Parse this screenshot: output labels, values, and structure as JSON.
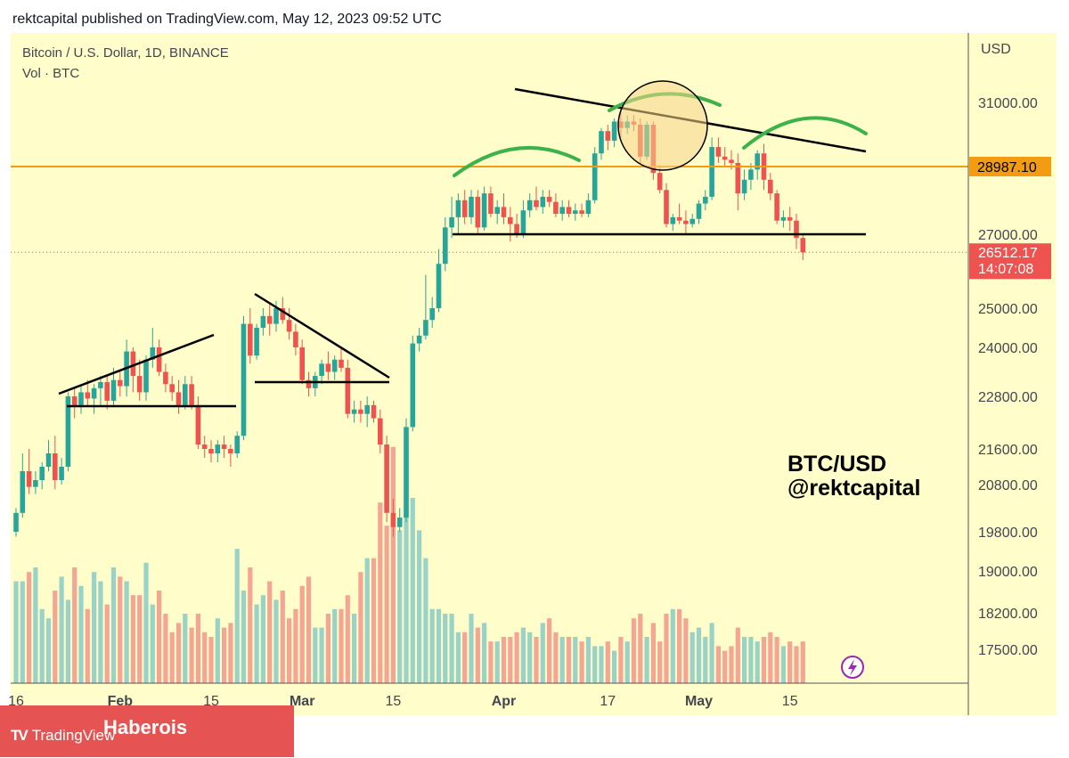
{
  "header": {
    "publisher_line": "rektcapital published on TradingView.com, May 12, 2023 09:52 UTC"
  },
  "legend": {
    "symbol": "Bitcoin / U.S. Dollar, 1D, BINANCE",
    "volume": "Vol · BTC"
  },
  "watermark": {
    "line1": "BTC/USD",
    "line2": "@rektcapital"
  },
  "badge": {
    "logo_text": "TradingView",
    "logo_mark": "TV",
    "brand": "Haberois"
  },
  "colors": {
    "background": "#fffdc9",
    "up": "#26a69a",
    "down": "#ef5350",
    "volume_up": "#99d3c8",
    "volume_down": "#f5a594",
    "resistance": "#f39c12",
    "price_label": "#ef5350",
    "trendline": "#000000",
    "arc": "#3bb34a"
  },
  "chart_data": {
    "type": "candlestick",
    "symbol": "BTC/USD",
    "timeframe": "1D",
    "exchange": "BINANCE",
    "currency_label": "USD",
    "y_ticks": [
      17500.0,
      18200.0,
      19000.0,
      19800.0,
      20800.0,
      21600.0,
      22800.0,
      24000.0,
      25000.0,
      27000.0,
      31000.0
    ],
    "y_tick_labels": [
      "17500.00",
      "18200.00",
      "19000.00",
      "19800.00",
      "20800.00",
      "21600.00",
      "22800.00",
      "24000.00",
      "25000.00",
      "27000.00",
      "31000.00"
    ],
    "x_tick_labels": [
      "16",
      "Feb",
      "15",
      "Mar",
      "15",
      "Apr",
      "17",
      "May",
      "15"
    ],
    "x_tick_dates": [
      "2023-01-16",
      "2023-02-01",
      "2023-02-15",
      "2023-03-01",
      "2023-03-15",
      "2023-04-01",
      "2023-04-17",
      "2023-05-01",
      "2023-05-15"
    ],
    "x_range": [
      "2023-01-16",
      "2023-06-05"
    ],
    "y_range": [
      16620,
      31900
    ],
    "horizontal_level": {
      "value": 28987.1,
      "label": "28987.10"
    },
    "last_price": {
      "value": 26512.17,
      "label": "26512.17",
      "countdown": "14:07:08"
    },
    "support_level": 27000,
    "candles": [
      {
        "date": "2023-01-16",
        "o": 19800,
        "h": 20300,
        "l": 19700,
        "c": 20200
      },
      {
        "date": "2023-01-17",
        "o": 20200,
        "h": 21500,
        "l": 20100,
        "c": 21100
      },
      {
        "date": "2023-01-18",
        "o": 21100,
        "h": 21600,
        "l": 20600,
        "c": 20750
      },
      {
        "date": "2023-01-19",
        "o": 20750,
        "h": 21100,
        "l": 20600,
        "c": 20900
      },
      {
        "date": "2023-01-20",
        "o": 20900,
        "h": 21300,
        "l": 20700,
        "c": 21200
      },
      {
        "date": "2023-01-21",
        "o": 21200,
        "h": 21800,
        "l": 21100,
        "c": 21500
      },
      {
        "date": "2023-01-22",
        "o": 21500,
        "h": 21900,
        "l": 20700,
        "c": 20900
      },
      {
        "date": "2023-01-23",
        "o": 20900,
        "h": 21400,
        "l": 20800,
        "c": 21200
      },
      {
        "date": "2023-01-24",
        "o": 21200,
        "h": 22900,
        "l": 21100,
        "c": 22800
      },
      {
        "date": "2023-01-25",
        "o": 22800,
        "h": 23000,
        "l": 22300,
        "c": 22600
      },
      {
        "date": "2023-01-26",
        "o": 22600,
        "h": 23100,
        "l": 22400,
        "c": 22900
      },
      {
        "date": "2023-01-27",
        "o": 22900,
        "h": 23200,
        "l": 22600,
        "c": 22750
      },
      {
        "date": "2023-01-28",
        "o": 22750,
        "h": 23100,
        "l": 22400,
        "c": 23000
      },
      {
        "date": "2023-01-29",
        "o": 23000,
        "h": 23300,
        "l": 22600,
        "c": 23150
      },
      {
        "date": "2023-01-30",
        "o": 23150,
        "h": 23300,
        "l": 22500,
        "c": 22700
      },
      {
        "date": "2023-01-31",
        "o": 22700,
        "h": 23500,
        "l": 22600,
        "c": 23200
      },
      {
        "date": "2023-02-01",
        "o": 23200,
        "h": 23400,
        "l": 22800,
        "c": 23050
      },
      {
        "date": "2023-02-02",
        "o": 23050,
        "h": 24200,
        "l": 22800,
        "c": 23900
      },
      {
        "date": "2023-02-03",
        "o": 23900,
        "h": 24000,
        "l": 22900,
        "c": 23300
      },
      {
        "date": "2023-02-04",
        "o": 23300,
        "h": 23700,
        "l": 22700,
        "c": 22900
      },
      {
        "date": "2023-02-05",
        "o": 22900,
        "h": 23800,
        "l": 22700,
        "c": 23700
      },
      {
        "date": "2023-02-06",
        "o": 23700,
        "h": 24500,
        "l": 23500,
        "c": 24000
      },
      {
        "date": "2023-02-07",
        "o": 24000,
        "h": 24200,
        "l": 23300,
        "c": 23400
      },
      {
        "date": "2023-02-08",
        "o": 23400,
        "h": 23600,
        "l": 22900,
        "c": 23100
      },
      {
        "date": "2023-02-09",
        "o": 23100,
        "h": 23300,
        "l": 22700,
        "c": 22900
      },
      {
        "date": "2023-02-10",
        "o": 22900,
        "h": 23200,
        "l": 22400,
        "c": 22600
      },
      {
        "date": "2023-02-11",
        "o": 22600,
        "h": 23300,
        "l": 22500,
        "c": 23100
      },
      {
        "date": "2023-02-12",
        "o": 23100,
        "h": 23300,
        "l": 22500,
        "c": 22600
      },
      {
        "date": "2023-02-13",
        "o": 22600,
        "h": 22800,
        "l": 21600,
        "c": 21700
      },
      {
        "date": "2023-02-14",
        "o": 21700,
        "h": 21900,
        "l": 21400,
        "c": 21600
      },
      {
        "date": "2023-02-15",
        "o": 21600,
        "h": 21800,
        "l": 21300,
        "c": 21500
      },
      {
        "date": "2023-02-16",
        "o": 21500,
        "h": 21800,
        "l": 21300,
        "c": 21700
      },
      {
        "date": "2023-02-17",
        "o": 21700,
        "h": 21900,
        "l": 21400,
        "c": 21600
      },
      {
        "date": "2023-02-18",
        "o": 21600,
        "h": 21700,
        "l": 21200,
        "c": 21500
      },
      {
        "date": "2023-02-19",
        "o": 21500,
        "h": 22000,
        "l": 21400,
        "c": 21900
      },
      {
        "date": "2023-02-20",
        "o": 21900,
        "h": 24800,
        "l": 21800,
        "c": 24600
      },
      {
        "date": "2023-02-21",
        "o": 24600,
        "h": 25000,
        "l": 23600,
        "c": 23800
      },
      {
        "date": "2023-02-22",
        "o": 23800,
        "h": 24600,
        "l": 23700,
        "c": 24500
      },
      {
        "date": "2023-02-23",
        "o": 24500,
        "h": 25000,
        "l": 24300,
        "c": 24800
      },
      {
        "date": "2023-02-24",
        "o": 24800,
        "h": 25100,
        "l": 24300,
        "c": 24600
      },
      {
        "date": "2023-02-25",
        "o": 24600,
        "h": 25200,
        "l": 24400,
        "c": 25000
      },
      {
        "date": "2023-02-26",
        "o": 25000,
        "h": 25300,
        "l": 24600,
        "c": 24700
      },
      {
        "date": "2023-02-27",
        "o": 24700,
        "h": 25000,
        "l": 24200,
        "c": 24400
      },
      {
        "date": "2023-02-28",
        "o": 24400,
        "h": 24600,
        "l": 23800,
        "c": 24000
      },
      {
        "date": "2023-03-01",
        "o": 24000,
        "h": 24200,
        "l": 23100,
        "c": 23200
      },
      {
        "date": "2023-03-02",
        "o": 23200,
        "h": 23400,
        "l": 22800,
        "c": 23000
      },
      {
        "date": "2023-03-03",
        "o": 23000,
        "h": 23400,
        "l": 22800,
        "c": 23300
      },
      {
        "date": "2023-03-04",
        "o": 23300,
        "h": 23700,
        "l": 23100,
        "c": 23600
      },
      {
        "date": "2023-03-05",
        "o": 23600,
        "h": 23900,
        "l": 23200,
        "c": 23400
      },
      {
        "date": "2023-03-06",
        "o": 23400,
        "h": 23800,
        "l": 23200,
        "c": 23700
      },
      {
        "date": "2023-03-07",
        "o": 23700,
        "h": 24000,
        "l": 23400,
        "c": 23500
      },
      {
        "date": "2023-03-08",
        "o": 23500,
        "h": 23700,
        "l": 22300,
        "c": 22400
      },
      {
        "date": "2023-03-09",
        "o": 22400,
        "h": 22700,
        "l": 22200,
        "c": 22500
      },
      {
        "date": "2023-03-10",
        "o": 22500,
        "h": 22700,
        "l": 22200,
        "c": 22400
      },
      {
        "date": "2023-03-11",
        "o": 22400,
        "h": 22800,
        "l": 22100,
        "c": 22600
      },
      {
        "date": "2023-03-12",
        "o": 22600,
        "h": 22700,
        "l": 22200,
        "c": 22300
      },
      {
        "date": "2023-03-13",
        "o": 22300,
        "h": 22500,
        "l": 21500,
        "c": 21700
      },
      {
        "date": "2023-03-14",
        "o": 21700,
        "h": 21900,
        "l": 20000,
        "c": 20200
      },
      {
        "date": "2023-03-15",
        "o": 20200,
        "h": 20500,
        "l": 19700,
        "c": 19900
      },
      {
        "date": "2023-03-16",
        "o": 19900,
        "h": 20300,
        "l": 19800,
        "c": 20100
      },
      {
        "date": "2023-03-17",
        "o": 20100,
        "h": 22300,
        "l": 20000,
        "c": 22100
      },
      {
        "date": "2023-03-18",
        "o": 22100,
        "h": 24300,
        "l": 22000,
        "c": 24100
      },
      {
        "date": "2023-03-19",
        "o": 24100,
        "h": 24500,
        "l": 23900,
        "c": 24300
      },
      {
        "date": "2023-03-20",
        "o": 24300,
        "h": 25900,
        "l": 24200,
        "c": 24700
      },
      {
        "date": "2023-03-21",
        "o": 24700,
        "h": 25300,
        "l": 24500,
        "c": 25000
      },
      {
        "date": "2023-03-22",
        "o": 25000,
        "h": 26600,
        "l": 24900,
        "c": 26200
      },
      {
        "date": "2023-03-23",
        "o": 26200,
        "h": 27500,
        "l": 26000,
        "c": 27200
      },
      {
        "date": "2023-03-24",
        "o": 27200,
        "h": 28100,
        "l": 26900,
        "c": 27500
      },
      {
        "date": "2023-03-25",
        "o": 27500,
        "h": 28200,
        "l": 27000,
        "c": 28000
      },
      {
        "date": "2023-03-26",
        "o": 28000,
        "h": 28300,
        "l": 27300,
        "c": 27500
      },
      {
        "date": "2023-03-27",
        "o": 27500,
        "h": 28300,
        "l": 27300,
        "c": 28100
      },
      {
        "date": "2023-03-28",
        "o": 28100,
        "h": 28300,
        "l": 27000,
        "c": 27200
      },
      {
        "date": "2023-03-29",
        "o": 27200,
        "h": 28400,
        "l": 27100,
        "c": 28200
      },
      {
        "date": "2023-03-30",
        "o": 28200,
        "h": 28400,
        "l": 27500,
        "c": 27600
      },
      {
        "date": "2023-03-31",
        "o": 27600,
        "h": 28000,
        "l": 27300,
        "c": 27800
      },
      {
        "date": "2023-04-01",
        "o": 27800,
        "h": 28200,
        "l": 27300,
        "c": 27500
      },
      {
        "date": "2023-04-02",
        "o": 27500,
        "h": 27800,
        "l": 26800,
        "c": 27300
      },
      {
        "date": "2023-04-03",
        "o": 27300,
        "h": 27600,
        "l": 26900,
        "c": 27000
      },
      {
        "date": "2023-04-04",
        "o": 27000,
        "h": 28000,
        "l": 26900,
        "c": 27700
      },
      {
        "date": "2023-04-05",
        "o": 27700,
        "h": 28200,
        "l": 27500,
        "c": 28000
      },
      {
        "date": "2023-04-06",
        "o": 28000,
        "h": 28400,
        "l": 27700,
        "c": 27800
      },
      {
        "date": "2023-04-07",
        "o": 27800,
        "h": 28300,
        "l": 27600,
        "c": 28100
      },
      {
        "date": "2023-04-08",
        "o": 28100,
        "h": 28300,
        "l": 27800,
        "c": 27950
      },
      {
        "date": "2023-04-09",
        "o": 27950,
        "h": 28200,
        "l": 27500,
        "c": 27600
      },
      {
        "date": "2023-04-10",
        "o": 27600,
        "h": 28000,
        "l": 27400,
        "c": 27800
      },
      {
        "date": "2023-04-11",
        "o": 27800,
        "h": 28000,
        "l": 27500,
        "c": 27600
      },
      {
        "date": "2023-04-12",
        "o": 27600,
        "h": 27900,
        "l": 27400,
        "c": 27700
      },
      {
        "date": "2023-04-13",
        "o": 27700,
        "h": 27900,
        "l": 27500,
        "c": 27600
      },
      {
        "date": "2023-04-14",
        "o": 27600,
        "h": 28200,
        "l": 27500,
        "c": 28000
      },
      {
        "date": "2023-04-15",
        "o": 28000,
        "h": 29600,
        "l": 27900,
        "c": 29400
      },
      {
        "date": "2023-04-16",
        "o": 29400,
        "h": 30200,
        "l": 29200,
        "c": 30100
      },
      {
        "date": "2023-04-17",
        "o": 30100,
        "h": 30300,
        "l": 29500,
        "c": 29800
      },
      {
        "date": "2023-04-18",
        "o": 29800,
        "h": 30500,
        "l": 29600,
        "c": 30400
      },
      {
        "date": "2023-04-19",
        "o": 30400,
        "h": 30700,
        "l": 29900,
        "c": 30200
      },
      {
        "date": "2023-04-20",
        "o": 30200,
        "h": 30600,
        "l": 30000,
        "c": 30400
      },
      {
        "date": "2023-04-21",
        "o": 30400,
        "h": 30600,
        "l": 30100,
        "c": 30300
      },
      {
        "date": "2023-04-22",
        "o": 30300,
        "h": 30500,
        "l": 29100,
        "c": 29300
      },
      {
        "date": "2023-04-23",
        "o": 29300,
        "h": 30400,
        "l": 29200,
        "c": 30300
      },
      {
        "date": "2023-04-24",
        "o": 30300,
        "h": 30400,
        "l": 28600,
        "c": 28800
      },
      {
        "date": "2023-04-25",
        "o": 28800,
        "h": 29000,
        "l": 28200,
        "c": 28300
      },
      {
        "date": "2023-04-26",
        "o": 28300,
        "h": 28500,
        "l": 27200,
        "c": 27300
      },
      {
        "date": "2023-04-27",
        "o": 27300,
        "h": 27600,
        "l": 27100,
        "c": 27500
      },
      {
        "date": "2023-04-28",
        "o": 27500,
        "h": 27900,
        "l": 27300,
        "c": 27400
      },
      {
        "date": "2023-04-29",
        "o": 27400,
        "h": 27700,
        "l": 27000,
        "c": 27300
      },
      {
        "date": "2023-04-30",
        "o": 27300,
        "h": 27600,
        "l": 27200,
        "c": 27450
      },
      {
        "date": "2023-05-01",
        "o": 27450,
        "h": 28000,
        "l": 27300,
        "c": 27900
      },
      {
        "date": "2023-05-02",
        "o": 27900,
        "h": 28300,
        "l": 27700,
        "c": 28100
      },
      {
        "date": "2023-05-03",
        "o": 28100,
        "h": 29900,
        "l": 28000,
        "c": 29600
      },
      {
        "date": "2023-05-04",
        "o": 29600,
        "h": 29900,
        "l": 29100,
        "c": 29300
      },
      {
        "date": "2023-05-05",
        "o": 29300,
        "h": 29600,
        "l": 29000,
        "c": 29200
      },
      {
        "date": "2023-05-06",
        "o": 29200,
        "h": 29500,
        "l": 28900,
        "c": 29100
      },
      {
        "date": "2023-05-07",
        "o": 29100,
        "h": 29400,
        "l": 27700,
        "c": 28200
      },
      {
        "date": "2023-05-08",
        "o": 28200,
        "h": 28900,
        "l": 28000,
        "c": 28600
      },
      {
        "date": "2023-05-09",
        "o": 28600,
        "h": 29100,
        "l": 28300,
        "c": 28900
      },
      {
        "date": "2023-05-10",
        "o": 28900,
        "h": 29500,
        "l": 28600,
        "c": 29400
      },
      {
        "date": "2023-05-11",
        "o": 29400,
        "h": 29700,
        "l": 28300,
        "c": 28600
      },
      {
        "date": "2023-05-12",
        "o": 28600,
        "h": 28800,
        "l": 28000,
        "c": 28200
      },
      {
        "date": "2023-05-13",
        "o": 28200,
        "h": 28300,
        "l": 27300,
        "c": 27400
      },
      {
        "date": "2023-05-14",
        "o": 27400,
        "h": 27700,
        "l": 27200,
        "c": 27500
      },
      {
        "date": "2023-05-15",
        "o": 27500,
        "h": 27800,
        "l": 27100,
        "c": 27400
      },
      {
        "date": "2023-05-16",
        "o": 27400,
        "h": 27600,
        "l": 26600,
        "c": 26900
      },
      {
        "date": "2023-05-17",
        "o": 26900,
        "h": 27000,
        "l": 26300,
        "c": 26512
      }
    ],
    "volume_profile": [
      22,
      22,
      24,
      25,
      16,
      14,
      20,
      23,
      18,
      25,
      21,
      16,
      24,
      22,
      17,
      25,
      23,
      22,
      19,
      19,
      26,
      17,
      20,
      15,
      11,
      13,
      15,
      12,
      15,
      11,
      10,
      14,
      12,
      13,
      29,
      20,
      25,
      17,
      19,
      22,
      18,
      20,
      14,
      16,
      21,
      23,
      12,
      12,
      15,
      16,
      16,
      19,
      15,
      24,
      27,
      27,
      39,
      34,
      51,
      33,
      41,
      40,
      33,
      27,
      16,
      16,
      15,
      15,
      11,
      11,
      15,
      12,
      13,
      9,
      9,
      10,
      10,
      11,
      12,
      11,
      10,
      13,
      14,
      11,
      10,
      10,
      10,
      9,
      10,
      8,
      8,
      9,
      7,
      10,
      9,
      14,
      15,
      10,
      13,
      9,
      15,
      16,
      16,
      14,
      11,
      12,
      10,
      13,
      8,
      7,
      8,
      12,
      10,
      10,
      9,
      10,
      11,
      10,
      8,
      9,
      8,
      9,
      9,
      10,
      8,
      9,
      11,
      10,
      12,
      9,
      11,
      10,
      9,
      8,
      7,
      8,
      7
    ]
  }
}
